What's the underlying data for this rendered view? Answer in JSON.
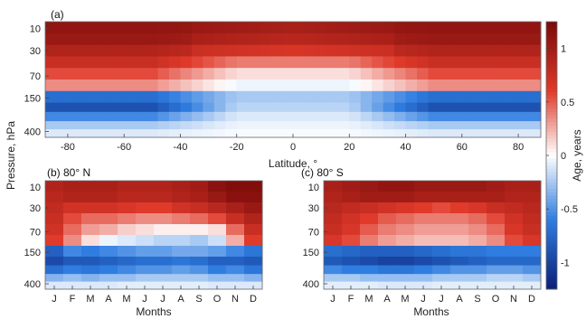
{
  "figure": {
    "ylabel": "Pressure, hPa",
    "colorbar": {
      "label": "Age, years",
      "range": [
        -1.25,
        1.25
      ],
      "ticks": [
        "1",
        "0.5",
        "0",
        "-0.5",
        "-1"
      ],
      "tick_values": [
        1,
        0.5,
        0,
        -0.5,
        -1
      ],
      "colors": {
        "low": "#0b1f7a",
        "mid_low": "#2f7de0",
        "zero": "#ffffff",
        "mid_high": "#e03a2a",
        "high": "#7a0a0a"
      }
    }
  },
  "chart_data": [
    {
      "type": "heatmap",
      "panel_label": "(a)",
      "title": "",
      "xlabel": "Latitude, °",
      "ylabel": "Pressure, hPa",
      "x_ticks": [
        "-80",
        "-60",
        "-40",
        "-20",
        "0",
        "20",
        "40",
        "60",
        "80"
      ],
      "x_tick_values": [
        -80,
        -60,
        -40,
        -20,
        0,
        20,
        40,
        60,
        80
      ],
      "xlim": [
        -88,
        88
      ],
      "y_ticks": [
        "10",
        "30",
        "70",
        "150",
        "400"
      ],
      "rows_pressure_hPa": [
        10,
        20,
        30,
        50,
        70,
        100,
        150,
        200,
        250,
        300,
        400
      ],
      "row_center_profile": [
        1.05,
        0.95,
        0.75,
        0.4,
        0.1,
        -0.05,
        -0.25,
        -0.2,
        -0.1,
        -0.05,
        -0.02
      ],
      "row_high_lat_profile": [
        1.1,
        1.05,
        0.9,
        0.75,
        0.55,
        0.35,
        -0.7,
        -0.9,
        -0.55,
        -0.25,
        -0.1
      ]
    },
    {
      "type": "heatmap",
      "panel_label": "(b) 80° N",
      "title": "",
      "xlabel": "Months",
      "ylabel": "",
      "x_ticks": [
        "J",
        "F",
        "M",
        "A",
        "M",
        "J",
        "J",
        "A",
        "S",
        "O",
        "N",
        "D"
      ],
      "y_ticks": [
        "10",
        "30",
        "70",
        "150",
        "400"
      ],
      "rows_pressure_hPa": [
        10,
        20,
        30,
        50,
        70,
        100,
        150,
        200,
        250,
        300,
        400
      ],
      "values": [
        [
          0.9,
          0.95,
          0.95,
          0.95,
          0.9,
          0.9,
          0.9,
          0.95,
          1.0,
          1.15,
          1.2,
          1.2
        ],
        [
          0.85,
          0.9,
          0.9,
          0.9,
          0.85,
          0.85,
          0.85,
          0.9,
          0.95,
          1.05,
          1.15,
          1.15
        ],
        [
          0.8,
          0.7,
          0.7,
          0.7,
          0.65,
          0.6,
          0.6,
          0.7,
          0.75,
          0.85,
          0.95,
          1.05
        ],
        [
          0.75,
          0.55,
          0.45,
          0.45,
          0.4,
          0.35,
          0.35,
          0.4,
          0.45,
          0.55,
          0.75,
          0.9
        ],
        [
          0.7,
          0.45,
          0.3,
          0.25,
          0.15,
          0.1,
          0.05,
          0.05,
          0.05,
          0.1,
          0.45,
          0.75
        ],
        [
          0.6,
          0.35,
          0.1,
          -0.05,
          -0.1,
          -0.15,
          -0.2,
          -0.2,
          -0.25,
          -0.15,
          0.25,
          0.6
        ],
        [
          -0.8,
          -0.55,
          -0.6,
          -0.55,
          -0.5,
          -0.45,
          -0.45,
          -0.4,
          -0.4,
          -0.45,
          -0.55,
          -0.65
        ],
        [
          -0.95,
          -0.85,
          -0.85,
          -0.8,
          -0.75,
          -0.7,
          -0.7,
          -0.65,
          -0.7,
          -0.8,
          -0.8,
          -0.85
        ],
        [
          -0.7,
          -0.6,
          -0.65,
          -0.6,
          -0.55,
          -0.5,
          -0.5,
          -0.45,
          -0.5,
          -0.6,
          -0.55,
          -0.65
        ],
        [
          -0.35,
          -0.3,
          -0.35,
          -0.3,
          -0.3,
          -0.25,
          -0.25,
          -0.25,
          -0.25,
          -0.3,
          -0.3,
          -0.35
        ],
        [
          -0.1,
          -0.1,
          -0.1,
          -0.1,
          -0.08,
          -0.08,
          -0.08,
          -0.08,
          -0.08,
          -0.1,
          -0.1,
          -0.1
        ]
      ]
    },
    {
      "type": "heatmap",
      "panel_label": "(c) 80° S",
      "title": "",
      "xlabel": "Months",
      "ylabel": "",
      "x_ticks": [
        "J",
        "F",
        "M",
        "A",
        "M",
        "J",
        "J",
        "A",
        "S",
        "O",
        "N",
        "D"
      ],
      "y_ticks": [
        "10",
        "30",
        "70",
        "150",
        "400"
      ],
      "rows_pressure_hPa": [
        10,
        20,
        30,
        50,
        70,
        100,
        150,
        200,
        250,
        300,
        400
      ],
      "values": [
        [
          0.95,
          1.0,
          1.05,
          1.1,
          1.1,
          1.05,
          1.05,
          1.05,
          1.05,
          1.0,
          0.95,
          0.95
        ],
        [
          0.9,
          0.95,
          1.0,
          1.0,
          1.0,
          0.95,
          0.95,
          0.95,
          0.95,
          0.95,
          0.9,
          0.9
        ],
        [
          0.85,
          0.8,
          0.75,
          0.7,
          0.65,
          0.6,
          0.55,
          0.6,
          0.65,
          0.75,
          0.8,
          0.85
        ],
        [
          0.8,
          0.7,
          0.6,
          0.5,
          0.45,
          0.4,
          0.4,
          0.4,
          0.45,
          0.55,
          0.7,
          0.8
        ],
        [
          0.75,
          0.65,
          0.5,
          0.4,
          0.35,
          0.3,
          0.3,
          0.3,
          0.35,
          0.45,
          0.65,
          0.75
        ],
        [
          0.65,
          0.55,
          0.4,
          0.3,
          0.25,
          0.2,
          0.2,
          0.2,
          0.25,
          0.35,
          0.55,
          0.65
        ],
        [
          -0.7,
          -0.75,
          -0.8,
          -0.8,
          -0.8,
          -0.75,
          -0.7,
          -0.65,
          -0.65,
          -0.6,
          -0.6,
          -0.6
        ],
        [
          -0.85,
          -0.9,
          -0.95,
          -1.0,
          -1.0,
          -0.95,
          -0.9,
          -0.85,
          -0.8,
          -0.75,
          -0.75,
          -0.75
        ],
        [
          -0.55,
          -0.6,
          -0.6,
          -0.65,
          -0.65,
          -0.6,
          -0.55,
          -0.5,
          -0.5,
          -0.45,
          -0.45,
          -0.5
        ],
        [
          -0.25,
          -0.25,
          -0.3,
          -0.3,
          -0.3,
          -0.3,
          -0.25,
          -0.25,
          -0.25,
          -0.2,
          -0.2,
          -0.25
        ],
        [
          -0.08,
          -0.08,
          -0.08,
          -0.1,
          -0.1,
          -0.1,
          -0.08,
          -0.08,
          -0.08,
          -0.08,
          -0.08,
          -0.08
        ]
      ]
    }
  ]
}
